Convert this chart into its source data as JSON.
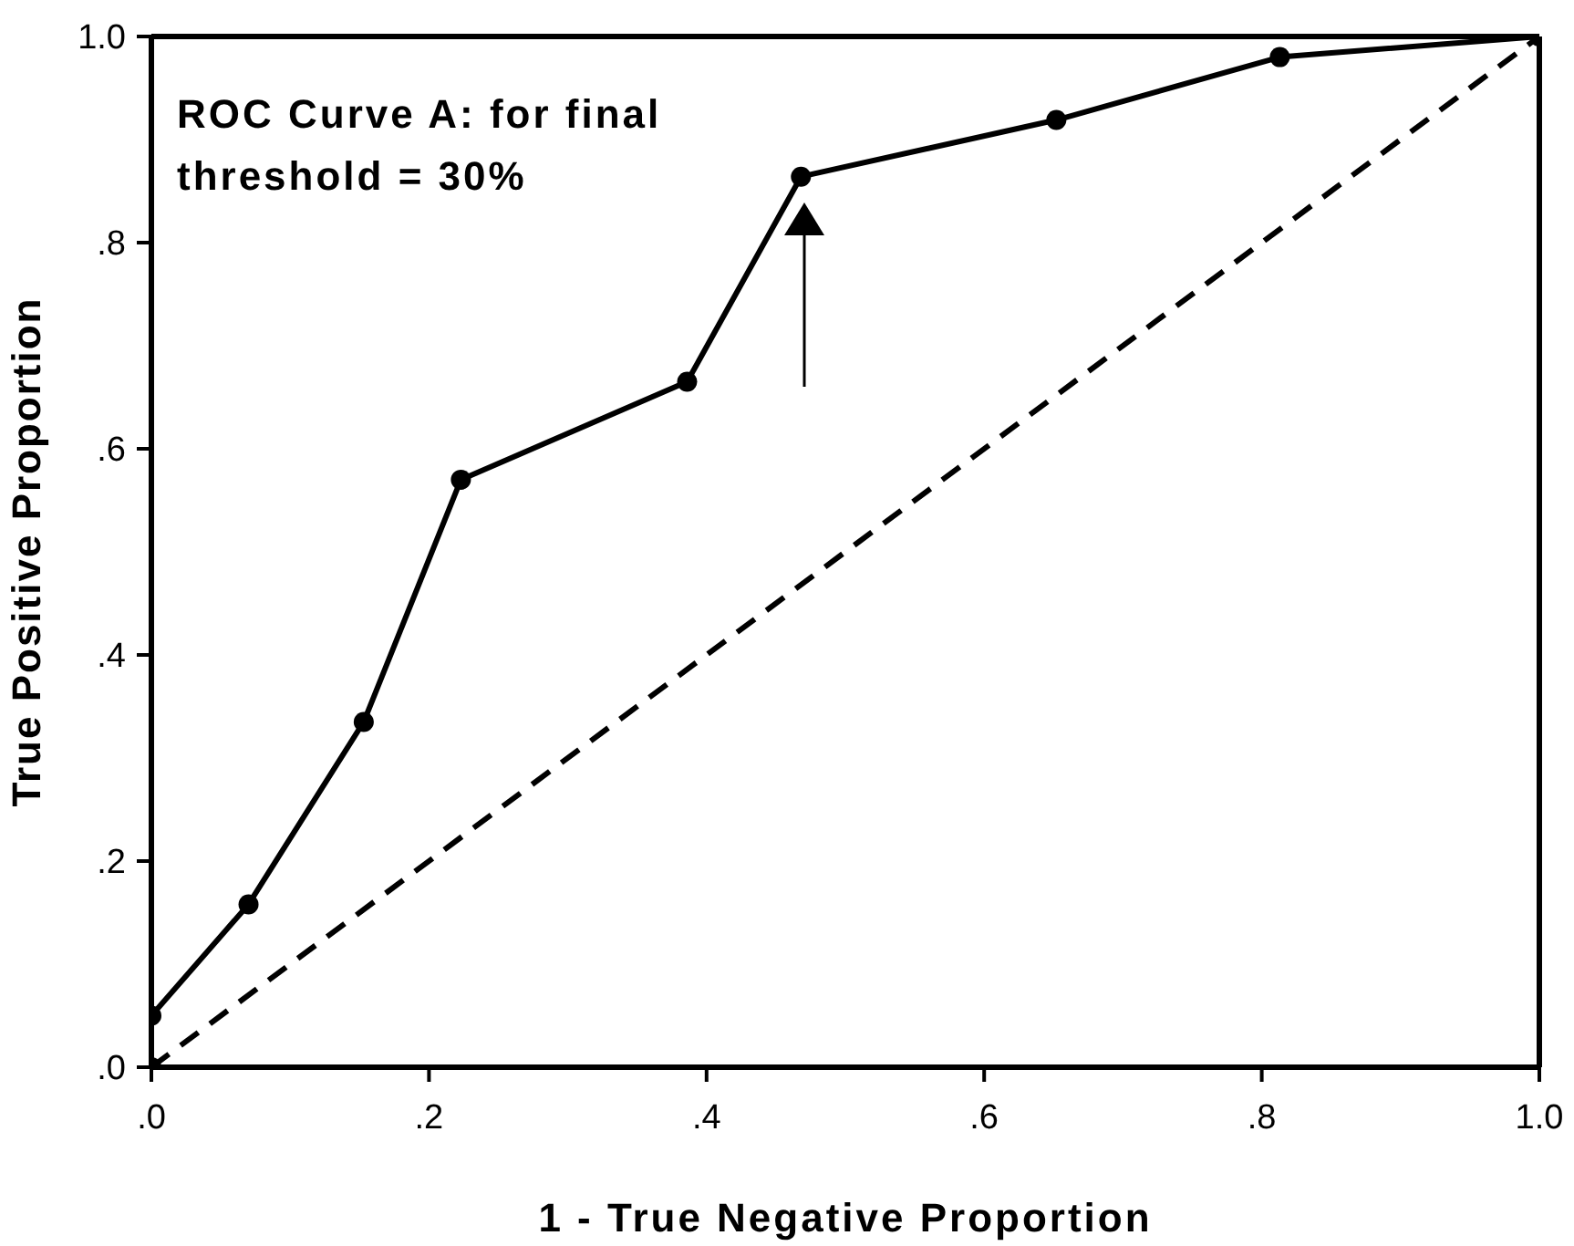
{
  "chart_data": {
    "type": "line",
    "xlabel": "1 - True Negative Proportion",
    "ylabel": "True Positive Proportion",
    "xlim": [
      0,
      1
    ],
    "ylim": [
      0,
      1
    ],
    "xticks": [
      {
        "value": 0,
        "label": ".0"
      },
      {
        "value": 0.2,
        "label": ".2"
      },
      {
        "value": 0.4,
        "label": ".4"
      },
      {
        "value": 0.6,
        "label": ".6"
      },
      {
        "value": 0.8,
        "label": ".8"
      },
      {
        "value": 1,
        "label": "1.0"
      }
    ],
    "yticks": [
      {
        "value": 0,
        "label": ".0"
      },
      {
        "value": 0.2,
        "label": ".2"
      },
      {
        "value": 0.4,
        "label": ".4"
      },
      {
        "value": 0.6,
        "label": ".6"
      },
      {
        "value": 0.8,
        "label": ".8"
      },
      {
        "value": 1,
        "label": "1.0"
      }
    ],
    "series": [
      {
        "color": "#000000",
        "marker": "circle",
        "line_style": "solid",
        "x": [
          0,
          0,
          0.07,
          0.153,
          0.223,
          0.386,
          0.468,
          0.652,
          0.813,
          1
        ],
        "values": [
          0,
          0.05,
          0.158,
          0.335,
          0.57,
          0.665,
          0.864,
          0.919,
          0.98,
          1
        ]
      },
      {
        "color": "#000000",
        "marker": "none",
        "line_style": "dashed",
        "x": [
          0,
          1
        ],
        "values": [
          0,
          1
        ]
      }
    ],
    "annotations": [
      "ROC Curve A: for final threshold = 30%"
    ]
  }
}
